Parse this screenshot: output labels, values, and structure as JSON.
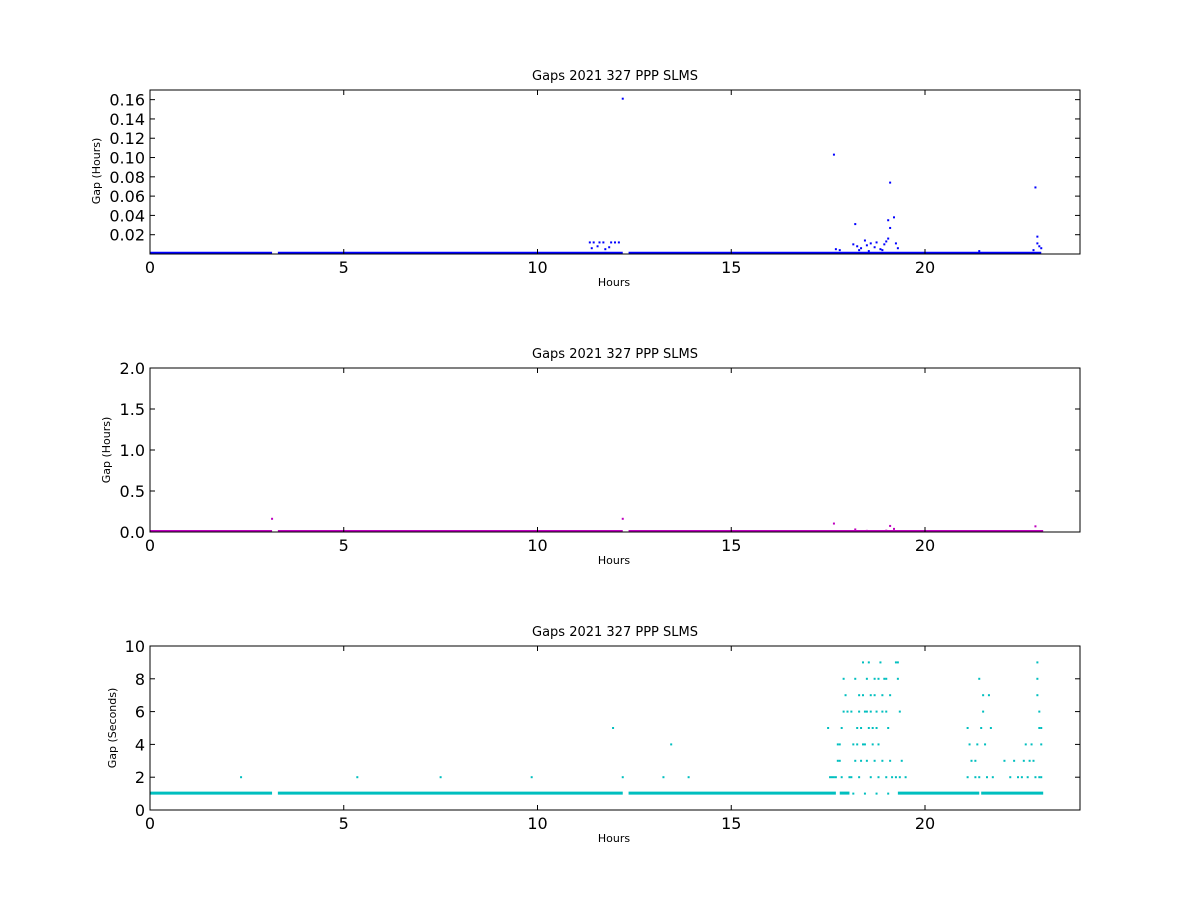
{
  "chart_data": [
    {
      "type": "scatter",
      "title": "Gaps 2021 327 PPP  SLMS",
      "xlabel": "Hours",
      "ylabel": "Gap (Hours)",
      "xlim": [
        0,
        24
      ],
      "ylim": [
        0,
        0.17
      ],
      "xticks": [
        0,
        5,
        10,
        15,
        20
      ],
      "yticks": [
        0.02,
        0.04,
        0.06,
        0.08,
        0.1,
        0.12,
        0.14,
        0.16
      ],
      "ytick_labels": [
        "0.02",
        "0.04",
        "0.06",
        "0.08",
        "0.10",
        "0.12",
        "0.14",
        "0.16"
      ],
      "grid": false,
      "color": "#0000ff",
      "series": [
        {
          "baseline": {
            "value": 0.0003,
            "segments": [
              [
                0,
                3.15
              ],
              [
                3.3,
                12.2
              ],
              [
                12.35,
                23.0
              ]
            ]
          },
          "points": [
            [
              12.2,
              0.161
            ],
            [
              17.65,
              0.103
            ],
            [
              19.1,
              0.074
            ],
            [
              22.85,
              0.069
            ],
            [
              19.2,
              0.038
            ],
            [
              19.05,
              0.035
            ],
            [
              18.2,
              0.031
            ],
            [
              19.1,
              0.027
            ],
            [
              22.9,
              0.018
            ],
            [
              11.35,
              0.012
            ],
            [
              11.45,
              0.012
            ],
            [
              11.6,
              0.012
            ],
            [
              11.7,
              0.012
            ],
            [
              11.9,
              0.012
            ],
            [
              12.0,
              0.012
            ],
            [
              12.1,
              0.012
            ],
            [
              11.4,
              0.006
            ],
            [
              11.55,
              0.008
            ],
            [
              11.75,
              0.005
            ],
            [
              11.85,
              0.007
            ],
            [
              17.7,
              0.005
            ],
            [
              17.8,
              0.004
            ],
            [
              18.15,
              0.01
            ],
            [
              18.25,
              0.008
            ],
            [
              18.35,
              0.006
            ],
            [
              18.45,
              0.014
            ],
            [
              18.5,
              0.009
            ],
            [
              18.6,
              0.011
            ],
            [
              18.7,
              0.007
            ],
            [
              18.75,
              0.012
            ],
            [
              18.85,
              0.005
            ],
            [
              18.95,
              0.01
            ],
            [
              19.0,
              0.013
            ],
            [
              19.05,
              0.016
            ],
            [
              19.25,
              0.011
            ],
            [
              19.3,
              0.006
            ],
            [
              18.3,
              0.004
            ],
            [
              18.55,
              0.003
            ],
            [
              18.9,
              0.004
            ],
            [
              21.4,
              0.003
            ],
            [
              22.8,
              0.004
            ],
            [
              22.9,
              0.011
            ],
            [
              22.95,
              0.008
            ],
            [
              23.0,
              0.006
            ]
          ]
        }
      ]
    },
    {
      "type": "scatter",
      "title": "Gaps 2021 327 PPP  SLMS",
      "xlabel": "Hours",
      "ylabel": "Gap (Hours)",
      "xlim": [
        0,
        24
      ],
      "ylim": [
        0,
        2.0
      ],
      "xticks": [
        0,
        5,
        10,
        15,
        20
      ],
      "yticks": [
        0.0,
        0.5,
        1.0,
        1.5,
        2.0
      ],
      "ytick_labels": [
        "0.0",
        "0.5",
        "1.0",
        "1.5",
        "2.0"
      ],
      "grid": false,
      "color": "#bf00bf",
      "series": [
        {
          "baseline": {
            "value": 0.0003,
            "segments": [
              [
                0,
                3.15
              ],
              [
                3.3,
                12.2
              ],
              [
                12.35,
                23.05
              ]
            ]
          },
          "points": [
            [
              3.15,
              0.161
            ],
            [
              12.2,
              0.161
            ],
            [
              17.65,
              0.103
            ],
            [
              19.1,
              0.074
            ],
            [
              22.85,
              0.069
            ],
            [
              19.2,
              0.038
            ],
            [
              18.2,
              0.031
            ],
            [
              18.5,
              0.014
            ],
            [
              18.9,
              0.012
            ],
            [
              19.0,
              0.016
            ]
          ]
        }
      ]
    },
    {
      "type": "scatter",
      "title": "Gaps 2021 327 PPP  SLMS",
      "xlabel": "Hours",
      "ylabel": "Gap (Seconds)",
      "xlim": [
        0,
        24
      ],
      "ylim": [
        0,
        10
      ],
      "xticks": [
        0,
        5,
        10,
        15,
        20
      ],
      "yticks": [
        0,
        2,
        4,
        6,
        8,
        10
      ],
      "ytick_labels": [
        "0",
        "2",
        "4",
        "6",
        "8",
        "10"
      ],
      "grid": false,
      "color": "#00bfbf",
      "series": [
        {
          "baseline": {
            "value": 1,
            "segments": [
              [
                0,
                3.15
              ],
              [
                3.3,
                12.2
              ],
              [
                12.35,
                17.7
              ],
              [
                17.8,
                18.05
              ],
              [
                19.3,
                21.4
              ],
              [
                21.45,
                23.05
              ]
            ]
          },
          "points": [
            [
              2.35,
              2
            ],
            [
              5.35,
              2
            ],
            [
              7.5,
              2
            ],
            [
              9.85,
              2
            ],
            [
              11.95,
              5
            ],
            [
              12.2,
              2
            ],
            [
              13.25,
              2
            ],
            [
              13.45,
              4
            ],
            [
              13.9,
              2
            ],
            [
              17.5,
              5
            ],
            [
              17.55,
              2
            ],
            [
              17.6,
              2
            ],
            [
              17.65,
              2
            ],
            [
              17.7,
              2
            ],
            [
              17.75,
              4
            ],
            [
              17.8,
              3
            ],
            [
              17.85,
              2
            ],
            [
              17.9,
              8
            ],
            [
              17.95,
              7
            ],
            [
              18.0,
              6
            ],
            [
              18.05,
              2
            ],
            [
              17.75,
              3
            ],
            [
              17.8,
              4
            ],
            [
              17.85,
              5
            ],
            [
              17.9,
              6
            ],
            [
              18.1,
              6
            ],
            [
              18.15,
              4
            ],
            [
              18.2,
              8
            ],
            [
              18.25,
              5
            ],
            [
              18.3,
              7
            ],
            [
              18.35,
              3
            ],
            [
              18.4,
              9
            ],
            [
              18.45,
              6
            ],
            [
              18.5,
              8
            ],
            [
              18.55,
              9
            ],
            [
              18.6,
              7
            ],
            [
              18.65,
              5
            ],
            [
              18.7,
              8
            ],
            [
              18.75,
              6
            ],
            [
              18.8,
              4
            ],
            [
              18.85,
              9
            ],
            [
              18.9,
              7
            ],
            [
              18.95,
              8
            ],
            [
              19.0,
              6
            ],
            [
              19.05,
              5
            ],
            [
              19.1,
              3
            ],
            [
              19.15,
              2
            ],
            [
              18.1,
              2
            ],
            [
              18.2,
              3
            ],
            [
              18.3,
              2
            ],
            [
              18.4,
              4
            ],
            [
              18.5,
              3
            ],
            [
              18.6,
              2
            ],
            [
              18.7,
              3
            ],
            [
              18.8,
              2
            ],
            [
              18.9,
              3
            ],
            [
              19.0,
              2
            ],
            [
              18.15,
              1
            ],
            [
              18.45,
              1
            ],
            [
              18.75,
              1
            ],
            [
              19.05,
              1
            ],
            [
              18.25,
              4
            ],
            [
              18.35,
              5
            ],
            [
              18.45,
              4
            ],
            [
              18.55,
              5
            ],
            [
              18.65,
              4
            ],
            [
              18.75,
              5
            ],
            [
              18.3,
              6
            ],
            [
              18.4,
              7
            ],
            [
              18.5,
              6
            ],
            [
              18.6,
              6
            ],
            [
              18.7,
              7
            ],
            [
              18.8,
              8
            ],
            [
              18.9,
              6
            ],
            [
              19.0,
              8
            ],
            [
              19.1,
              7
            ],
            [
              19.25,
              9
            ],
            [
              19.3,
              9
            ],
            [
              19.3,
              8
            ],
            [
              19.35,
              6
            ],
            [
              19.4,
              3
            ],
            [
              19.5,
              2
            ],
            [
              19.25,
              2
            ],
            [
              19.35,
              2
            ],
            [
              21.1,
              5
            ],
            [
              21.1,
              2
            ],
            [
              21.15,
              4
            ],
            [
              21.2,
              3
            ],
            [
              21.3,
              2
            ],
            [
              21.35,
              4
            ],
            [
              21.4,
              2
            ],
            [
              21.45,
              5
            ],
            [
              21.5,
              6
            ],
            [
              21.55,
              4
            ],
            [
              21.6,
              2
            ],
            [
              21.65,
              7
            ],
            [
              21.7,
              5
            ],
            [
              21.75,
              2
            ],
            [
              21.4,
              8
            ],
            [
              21.5,
              7
            ],
            [
              21.3,
              3
            ],
            [
              22.05,
              3
            ],
            [
              22.2,
              2
            ],
            [
              22.3,
              3
            ],
            [
              22.4,
              2
            ],
            [
              22.5,
              2
            ],
            [
              22.55,
              3
            ],
            [
              22.6,
              4
            ],
            [
              22.65,
              2
            ],
            [
              22.7,
              3
            ],
            [
              22.75,
              4
            ],
            [
              22.8,
              3
            ],
            [
              22.85,
              2
            ],
            [
              22.9,
              9
            ],
            [
              22.9,
              8
            ],
            [
              22.9,
              7
            ],
            [
              22.95,
              6
            ],
            [
              22.95,
              5
            ],
            [
              23.0,
              5
            ],
            [
              23.0,
              4
            ],
            [
              23.0,
              2
            ],
            [
              22.95,
              2
            ]
          ]
        }
      ]
    }
  ]
}
